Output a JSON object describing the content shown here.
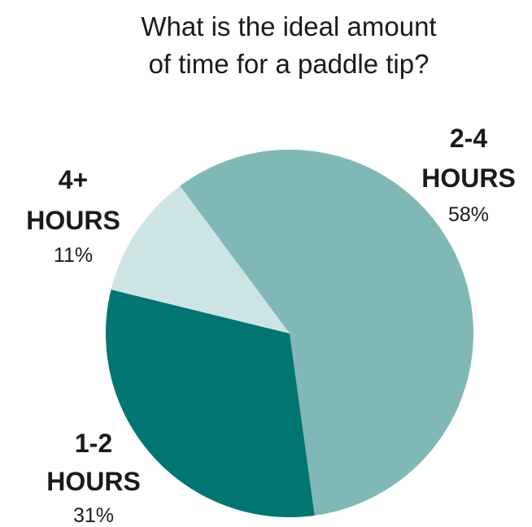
{
  "chart_data": {
    "type": "pie",
    "title_lines": [
      "What is the ideal amount",
      "of time for a paddle tip?"
    ],
    "slices": [
      {
        "label_lines": [
          "2-4",
          "HOURS"
        ],
        "value": 58,
        "value_label": "58%",
        "color": "#80b8b8"
      },
      {
        "label_lines": [
          "1-2",
          "HOURS"
        ],
        "value": 31,
        "value_label": "31%",
        "color": "#007571"
      },
      {
        "label_lines": [
          "4+",
          "HOURS"
        ],
        "value": 11,
        "value_label": "11%",
        "color": "#cce4e4"
      }
    ],
    "start_direction": "top-left, clockwise",
    "legend": "none"
  }
}
